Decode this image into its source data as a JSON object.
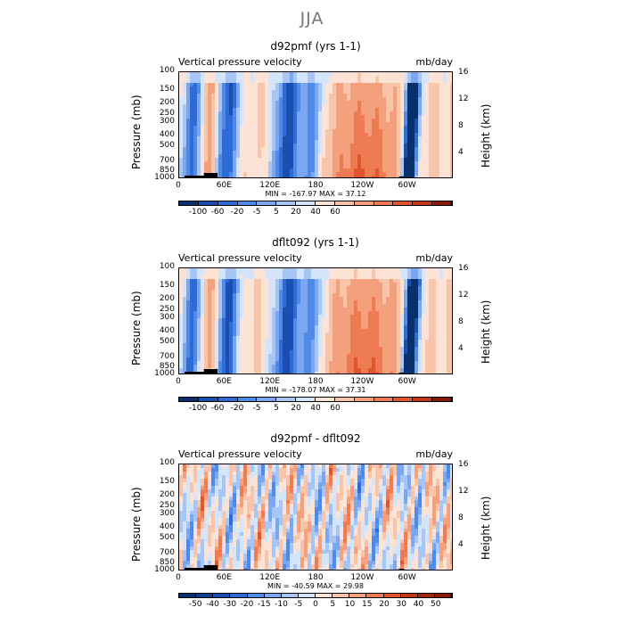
{
  "suptitle": "JJA",
  "chart_data": [
    {
      "type": "heatmap",
      "title": "d92pmf (yrs 1-1)",
      "left_string": "Vertical pressure velocity",
      "right_string": "mb/day",
      "ylabel": "Pressure (mb)",
      "ylabel_right": "Height (km)",
      "y_ticks": [
        "100",
        "150",
        "200",
        "250",
        "300",
        "400",
        "500",
        "700",
        "850",
        "1000"
      ],
      "y_ticks_right": [
        "16",
        "12",
        "8",
        "4"
      ],
      "x_ticks": [
        "0",
        "60E",
        "120E",
        "180",
        "120W",
        "60W"
      ],
      "min_max": "MIN = -167.97   MAX =  37.12",
      "colorbar_labels": [
        "-100",
        "-60",
        "-20",
        "-5",
        "5",
        "20",
        "40",
        "60"
      ],
      "colors": [
        "#08306b",
        "#1a4fb0",
        "#2f6bd6",
        "#4f8ae8",
        "#7aa7ef",
        "#a7c6f5",
        "#d3e4fb",
        "#fde3d6",
        "#f8c4aa",
        "#f4a07c",
        "#ee7b52",
        "#e0552e",
        "#c23a1a",
        "#8b1a0a"
      ]
    },
    {
      "type": "heatmap",
      "title": "dflt092 (yrs 1-1)",
      "left_string": "Vertical pressure velocity",
      "right_string": "mb/day",
      "ylabel": "Pressure (mb)",
      "ylabel_right": "Height (km)",
      "y_ticks": [
        "100",
        "150",
        "200",
        "250",
        "300",
        "400",
        "500",
        "700",
        "850",
        "1000"
      ],
      "y_ticks_right": [
        "16",
        "12",
        "8",
        "4"
      ],
      "x_ticks": [
        "0",
        "60E",
        "120E",
        "180",
        "120W",
        "60W"
      ],
      "min_max": "MIN = -178.07   MAX =  37.31",
      "colorbar_labels": [
        "-100",
        "-60",
        "-20",
        "-5",
        "5",
        "20",
        "40",
        "60"
      ],
      "colors": [
        "#08306b",
        "#1a4fb0",
        "#2f6bd6",
        "#4f8ae8",
        "#7aa7ef",
        "#a7c6f5",
        "#d3e4fb",
        "#fde3d6",
        "#f8c4aa",
        "#f4a07c",
        "#ee7b52",
        "#e0552e",
        "#c23a1a",
        "#8b1a0a"
      ]
    },
    {
      "type": "heatmap",
      "title": "d92pmf - dflt092",
      "left_string": "Vertical pressure velocity",
      "right_string": "mb/day",
      "ylabel": "Pressure (mb)",
      "ylabel_right": "Height (km)",
      "y_ticks": [
        "100",
        "150",
        "200",
        "250",
        "300",
        "400",
        "500",
        "700",
        "850",
        "1000"
      ],
      "y_ticks_right": [
        "16",
        "12",
        "8",
        "4"
      ],
      "x_ticks": [
        "0",
        "60E",
        "120E",
        "180",
        "120W",
        "60W"
      ],
      "min_max": "MIN = -40.59   MAX =  29.98",
      "colorbar_labels": [
        "-50",
        "-40",
        "-30",
        "-20",
        "-15",
        "-10",
        "-5",
        "0",
        "5",
        "10",
        "15",
        "20",
        "30",
        "40",
        "50"
      ],
      "colors": [
        "#08306b",
        "#12408f",
        "#1a4fb0",
        "#2f6bd6",
        "#4f8ae8",
        "#7aa7ef",
        "#a7c6f5",
        "#d3e4fb",
        "#fde3d6",
        "#f8c4aa",
        "#f4a07c",
        "#ee7b52",
        "#e0552e",
        "#c23a1a",
        "#a02812",
        "#8b1a0a"
      ]
    }
  ]
}
